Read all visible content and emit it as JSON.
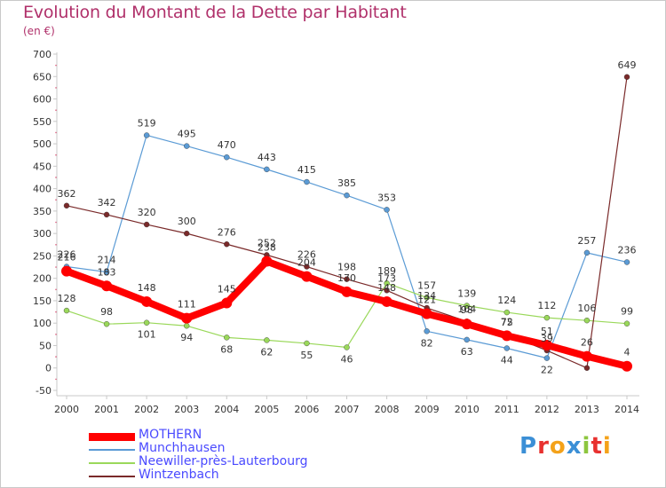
{
  "title": "Evolution du Montant de la Dette par Habitant",
  "subtitle": "(en €)",
  "logo": {
    "text": "Proxiti",
    "letters": [
      "P",
      "r",
      "o",
      "x",
      "i",
      "t",
      "i"
    ],
    "colors": [
      "#3b8fd6",
      "#e8312f",
      "#f4a21a",
      "#3b8fd6",
      "#8dc63f",
      "#e8312f",
      "#f4a21a"
    ]
  },
  "chart_data": {
    "type": "line",
    "x": [
      "2000",
      "2001",
      "2002",
      "2003",
      "2004",
      "2005",
      "2006",
      "2007",
      "2008",
      "2009",
      "2010",
      "2011",
      "2012",
      "2013",
      "2014"
    ],
    "ylim": [
      -50,
      700
    ],
    "yticks": [
      -50,
      0,
      50,
      100,
      150,
      200,
      250,
      300,
      350,
      400,
      450,
      500,
      550,
      600,
      650,
      700
    ],
    "grid": false,
    "legend_position": "bottom-left",
    "series": [
      {
        "name": "MOTHERN",
        "color": "#ff0000",
        "width": 8,
        "marker": 6,
        "values": [
          216,
          183,
          148,
          111,
          145,
          238,
          204,
          170,
          148,
          121,
          98,
          72,
          51,
          26,
          4
        ]
      },
      {
        "name": "Munchhausen",
        "color": "#5b9bd5",
        "width": 1.2,
        "marker": 3,
        "values": [
          226,
          214,
          519,
          495,
          470,
          443,
          415,
          385,
          353,
          82,
          63,
          44,
          22,
          257,
          236
        ]
      },
      {
        "name": "Neewiller-près-Lauterbourg",
        "color": "#9ad85a",
        "width": 1.2,
        "marker": 3,
        "values": [
          128,
          98,
          101,
          94,
          68,
          62,
          55,
          46,
          189,
          157,
          139,
          124,
          112,
          106,
          99
        ]
      },
      {
        "name": "Wintzenbach",
        "color": "#7a2a2a",
        "width": 1.2,
        "marker": 3,
        "values": [
          362,
          342,
          320,
          300,
          276,
          252,
          226,
          198,
          173,
          134,
          104,
          75,
          39,
          0,
          649
        ]
      }
    ],
    "data_labels": [
      {
        "series": 0,
        "labels": [
          "216",
          "183",
          "148",
          "111",
          "145",
          "238",
          "204",
          "170",
          "148",
          "121",
          "98",
          "72",
          "51",
          "26",
          "4"
        ]
      },
      {
        "series": 1,
        "labels": [
          "226",
          "214",
          "519",
          "495",
          "470",
          "443",
          "415",
          "385",
          "353",
          "82",
          "63",
          "44",
          "22",
          "257",
          "236"
        ]
      },
      {
        "series": 2,
        "labels": [
          "128",
          "98",
          "101",
          "94",
          "68",
          "62",
          "55",
          "46",
          "189",
          "157",
          "139",
          "124",
          "112",
          "106",
          "99"
        ]
      },
      {
        "series": 3,
        "labels": [
          "362",
          "342",
          "320",
          "300",
          "276",
          "252",
          "226",
          "198",
          "173",
          "134",
          "104",
          "75",
          "39",
          "",
          "649"
        ]
      }
    ]
  }
}
